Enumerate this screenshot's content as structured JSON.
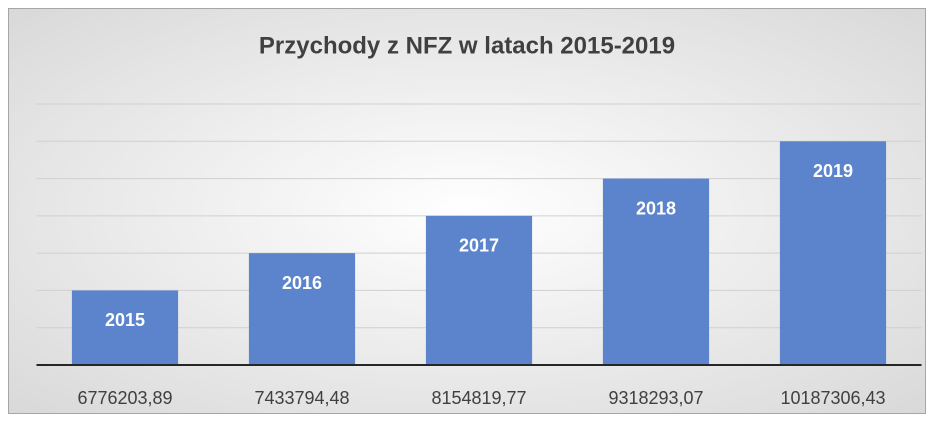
{
  "chart_data": {
    "type": "bar",
    "title": "Przychody z NFZ w latach 2015-2019",
    "categories": [
      "6776203,89",
      "7433794,48",
      "8154819,77",
      "9318293,07",
      "10187306,43"
    ],
    "values": [
      2015,
      2016,
      2017,
      2018,
      2019
    ],
    "color": "#5b84cc",
    "ylim": [
      2013,
      2020
    ],
    "yticks": [
      2013,
      2014,
      2015,
      2016,
      2017,
      2018,
      2019,
      2020
    ],
    "ytick_labels": false,
    "grid": true,
    "data_labels": true
  }
}
